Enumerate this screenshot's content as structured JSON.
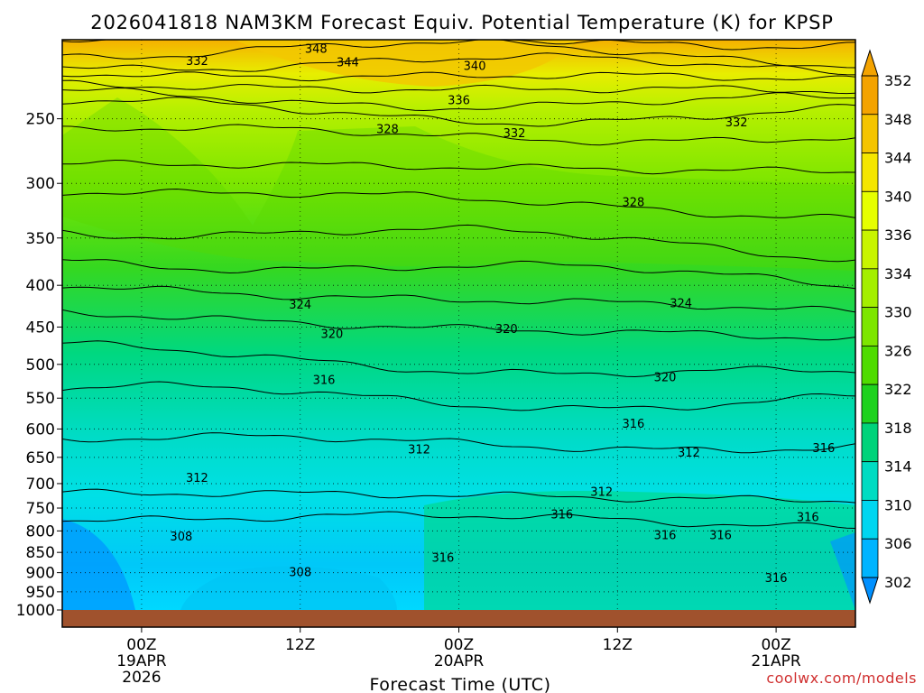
{
  "chart_data": {
    "type": "heatmap",
    "title": "2026041818 NAM3KM Forecast Equiv. Potential Temperature (K) for KPSP",
    "xlabel": "Forecast Time (UTC)",
    "ylabel": "",
    "credit": "coolwx.com/models",
    "y_scale": "log-pressure",
    "ylim": [
      1000,
      200
    ],
    "y_ticks": [
      "250",
      "300",
      "350",
      "400",
      "450",
      "500",
      "550",
      "600",
      "650",
      "700",
      "750",
      "800",
      "850",
      "900",
      "950",
      "1000"
    ],
    "x_ticks": [
      {
        "line1": "00Z",
        "line2": "19APR",
        "line3": "2026"
      },
      {
        "line1": "12Z",
        "line2": "",
        "line3": ""
      },
      {
        "line1": "00Z",
        "line2": "20APR",
        "line3": ""
      },
      {
        "line1": "12Z",
        "line2": "",
        "line3": ""
      },
      {
        "line1": "00Z",
        "line2": "21APR",
        "line3": ""
      }
    ],
    "colorbar": {
      "labels": [
        "352",
        "348",
        "344",
        "340",
        "336",
        "334",
        "330",
        "326",
        "322",
        "318",
        "314",
        "310",
        "306",
        "302"
      ],
      "colors": [
        "#f4a300",
        "#f5c400",
        "#f5e600",
        "#e6ff00",
        "#c8f500",
        "#a4ef00",
        "#7de600",
        "#4fdc00",
        "#1ed21e",
        "#00d37a",
        "#00dcc2",
        "#00d6f0",
        "#00b4ff",
        "#0090ff"
      ]
    },
    "levels": [
      {
        "pressure": 1000,
        "theta_e": 308
      },
      {
        "pressure": 950,
        "theta_e": 309
      },
      {
        "pressure": 900,
        "theta_e": 309
      },
      {
        "pressure": 850,
        "theta_e": 310
      },
      {
        "pressure": 800,
        "theta_e": 309
      },
      {
        "pressure": 750,
        "theta_e": 311
      },
      {
        "pressure": 700,
        "theta_e": 313
      },
      {
        "pressure": 650,
        "theta_e": 313
      },
      {
        "pressure": 600,
        "theta_e": 315
      },
      {
        "pressure": 550,
        "theta_e": 316
      },
      {
        "pressure": 500,
        "theta_e": 318
      },
      {
        "pressure": 450,
        "theta_e": 320
      },
      {
        "pressure": 400,
        "theta_e": 323
      },
      {
        "pressure": 350,
        "theta_e": 326
      },
      {
        "pressure": 300,
        "theta_e": 329
      },
      {
        "pressure": 250,
        "theta_e": 333
      },
      {
        "pressure": 200,
        "theta_e": 346
      }
    ],
    "contour_labels": [
      {
        "text": "348",
        "t": 0.32,
        "p": 205
      },
      {
        "text": "344",
        "t": 0.36,
        "p": 213
      },
      {
        "text": "332",
        "t": 0.17,
        "p": 212
      },
      {
        "text": "340",
        "t": 0.52,
        "p": 215
      },
      {
        "text": "336",
        "t": 0.5,
        "p": 237
      },
      {
        "text": "332",
        "t": 0.57,
        "p": 260
      },
      {
        "text": "328",
        "t": 0.41,
        "p": 257
      },
      {
        "text": "332",
        "t": 0.85,
        "p": 252
      },
      {
        "text": "328",
        "t": 0.72,
        "p": 316
      },
      {
        "text": "324",
        "t": 0.3,
        "p": 422
      },
      {
        "text": "324",
        "t": 0.78,
        "p": 420
      },
      {
        "text": "320",
        "t": 0.34,
        "p": 458
      },
      {
        "text": "320",
        "t": 0.56,
        "p": 452
      },
      {
        "text": "316",
        "t": 0.33,
        "p": 522
      },
      {
        "text": "320",
        "t": 0.76,
        "p": 518
      },
      {
        "text": "316",
        "t": 0.72,
        "p": 590
      },
      {
        "text": "312",
        "t": 0.45,
        "p": 635
      },
      {
        "text": "312",
        "t": 0.79,
        "p": 640
      },
      {
        "text": "316",
        "t": 0.96,
        "p": 632
      },
      {
        "text": "312",
        "t": 0.17,
        "p": 688
      },
      {
        "text": "312",
        "t": 0.68,
        "p": 715
      },
      {
        "text": "316",
        "t": 0.63,
        "p": 762
      },
      {
        "text": "316",
        "t": 0.94,
        "p": 768
      },
      {
        "text": "308",
        "t": 0.15,
        "p": 812
      },
      {
        "text": "316",
        "t": 0.76,
        "p": 808
      },
      {
        "text": "316",
        "t": 0.83,
        "p": 808
      },
      {
        "text": "316",
        "t": 0.48,
        "p": 862
      },
      {
        "text": "308",
        "t": 0.3,
        "p": 897
      },
      {
        "text": "316",
        "t": 0.9,
        "p": 912
      }
    ]
  }
}
